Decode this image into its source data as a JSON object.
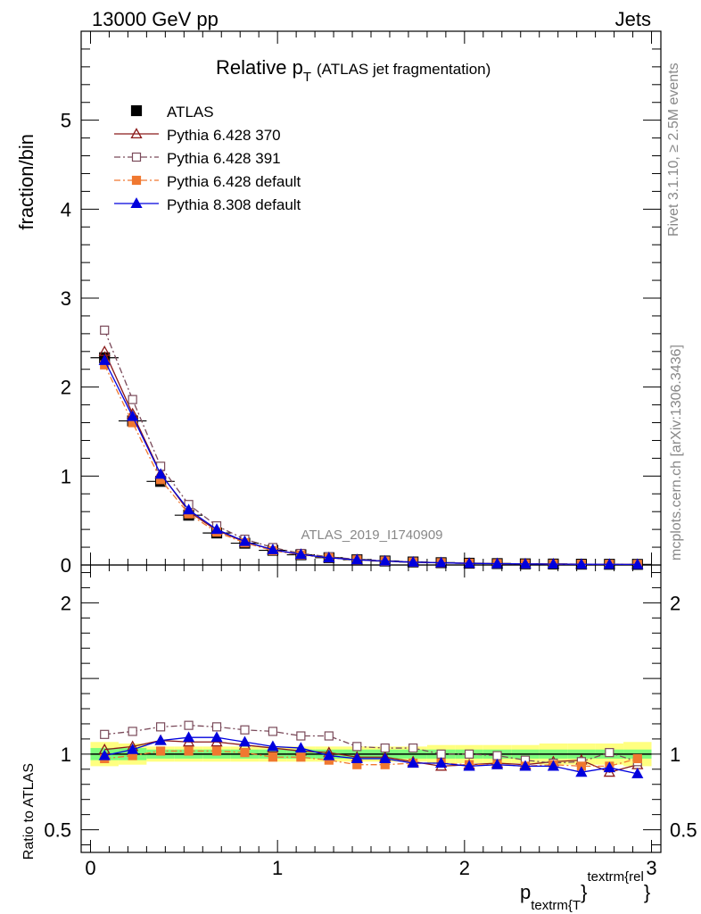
{
  "header": {
    "left": "13000 GeV pp",
    "right": "Jets"
  },
  "side": {
    "rivet": "Rivet 3.1.10, ≥ 2.5M events",
    "mcplots": "mcplots.cern.ch [arXiv:1306.3436]"
  },
  "chart_data": [
    {
      "type": "line",
      "title": "Relative p_T (ATLAS jet fragmentation)",
      "title_main": "Relative p",
      "title_sub": "T",
      "title_rest": "(ATLAS jet fragmentation)",
      "ylabel": "fraction/bin",
      "xlabel": "p_textrm{T}^textrm{rel}",
      "watermark": "ATLAS_2019_I1740909",
      "xlim": [
        -0.05,
        3.05
      ],
      "ylim": [
        0,
        6
      ],
      "yticks": [
        "0",
        "1",
        "2",
        "3",
        "4",
        "5"
      ],
      "legend_position": "top-left",
      "x": [
        0.075,
        0.225,
        0.375,
        0.525,
        0.675,
        0.825,
        0.975,
        1.125,
        1.275,
        1.425,
        1.575,
        1.725,
        1.875,
        2.025,
        2.175,
        2.325,
        2.475,
        2.625,
        2.775,
        2.925
      ],
      "series": [
        {
          "name": "ATLAS",
          "color": "#000000",
          "marker": "square-filled",
          "values": [
            2.33,
            1.62,
            0.94,
            0.56,
            0.36,
            0.245,
            0.165,
            0.115,
            0.082,
            0.06,
            0.045,
            0.034,
            0.026,
            0.02,
            0.016,
            0.013,
            0.011,
            0.009,
            0.008,
            0.007
          ]
        },
        {
          "name": "Pythia 6.428 370",
          "color": "#8b1a1a",
          "marker": "triangle-open",
          "dash": "solid",
          "values": [
            2.4,
            1.7,
            1.03,
            0.6,
            0.39,
            0.26,
            0.172,
            0.117,
            0.083,
            0.059,
            0.044,
            0.032,
            0.024,
            0.019,
            0.015,
            0.012,
            0.0105,
            0.0087,
            0.0071,
            0.0065
          ]
        },
        {
          "name": "Pythia 6.428 391",
          "color": "#7a4a5a",
          "marker": "square-open",
          "dash": "dashdot",
          "values": [
            2.64,
            1.86,
            1.11,
            0.68,
            0.44,
            0.29,
            0.196,
            0.13,
            0.093,
            0.063,
            0.047,
            0.035,
            0.026,
            0.02,
            0.0158,
            0.0125,
            0.0104,
            0.0088,
            0.0081,
            0.0067
          ]
        },
        {
          "name": "Pythia 6.428 default",
          "color": "#f07830",
          "marker": "square-filled",
          "dash": "dashdot",
          "values": [
            2.25,
            1.6,
            0.96,
            0.575,
            0.37,
            0.25,
            0.162,
            0.113,
            0.079,
            0.056,
            0.042,
            0.032,
            0.025,
            0.0188,
            0.0149,
            0.0121,
            0.0102,
            0.0085,
            0.0074,
            0.0068
          ]
        },
        {
          "name": "Pythia 8.308 default",
          "color": "#0000dd",
          "marker": "triangle-filled",
          "dash": "solid",
          "values": [
            2.3,
            1.67,
            1.02,
            0.62,
            0.4,
            0.265,
            0.172,
            0.119,
            0.081,
            0.058,
            0.044,
            0.032,
            0.025,
            0.0184,
            0.0149,
            0.012,
            0.0101,
            0.008,
            0.0073,
            0.0061
          ]
        }
      ]
    },
    {
      "type": "line",
      "ylabel": "Ratio to ATLAS",
      "xlim": [
        -0.05,
        3.05
      ],
      "ylim": [
        0.35,
        2.25
      ],
      "yticks": [
        "0.5",
        "1",
        "2"
      ],
      "xticks": [
        "0",
        "1",
        "2",
        "3"
      ],
      "x": [
        0.075,
        0.225,
        0.375,
        0.525,
        0.675,
        0.825,
        0.975,
        1.125,
        1.275,
        1.425,
        1.575,
        1.725,
        1.875,
        2.025,
        2.175,
        2.325,
        2.475,
        2.625,
        2.775,
        2.925
      ],
      "band_inner": [
        0.04,
        0.04,
        0.03,
        0.03,
        0.03,
        0.03,
        0.03,
        0.03,
        0.03,
        0.03,
        0.03,
        0.03,
        0.03,
        0.03,
        0.03,
        0.03,
        0.03,
        0.03,
        0.03,
        0.03
      ],
      "band_outer": [
        0.08,
        0.07,
        0.05,
        0.05,
        0.05,
        0.05,
        0.05,
        0.05,
        0.05,
        0.05,
        0.05,
        0.05,
        0.06,
        0.06,
        0.06,
        0.06,
        0.07,
        0.07,
        0.07,
        0.08
      ],
      "band_colors": {
        "inner": "#7cfc7c",
        "outer": "#ffff80"
      },
      "series": [
        {
          "name": "Pythia 6.428 370",
          "color": "#8b1a1a",
          "marker": "triangle-open",
          "dash": "solid",
          "values": [
            1.03,
            1.05,
            1.09,
            1.08,
            1.08,
            1.06,
            1.04,
            1.02,
            1.01,
            0.98,
            0.98,
            0.95,
            0.92,
            0.93,
            0.94,
            0.93,
            0.95,
            0.96,
            0.88,
            0.93
          ]
        },
        {
          "name": "Pythia 6.428 391",
          "color": "#7a4a5a",
          "marker": "square-open",
          "dash": "dashdot",
          "values": [
            1.13,
            1.15,
            1.18,
            1.19,
            1.18,
            1.16,
            1.15,
            1.12,
            1.12,
            1.05,
            1.04,
            1.04,
            1.0,
            1.0,
            0.99,
            0.96,
            0.94,
            0.95,
            1.01,
            0.95
          ]
        },
        {
          "name": "Pythia 6.428 default",
          "color": "#f07830",
          "marker": "square-filled",
          "dash": "dashdot",
          "values": [
            0.97,
            0.99,
            1.02,
            1.02,
            1.02,
            1.01,
            0.98,
            0.98,
            0.96,
            0.93,
            0.93,
            0.94,
            0.94,
            0.93,
            0.93,
            0.92,
            0.93,
            0.92,
            0.92,
            0.97
          ]
        },
        {
          "name": "Pythia 8.308 default",
          "color": "#0000dd",
          "marker": "triangle-filled",
          "dash": "solid",
          "values": [
            0.99,
            1.03,
            1.09,
            1.11,
            1.11,
            1.08,
            1.05,
            1.04,
            0.99,
            0.97,
            0.97,
            0.94,
            0.94,
            0.92,
            0.93,
            0.92,
            0.92,
            0.88,
            0.91,
            0.87
          ]
        }
      ]
    }
  ]
}
